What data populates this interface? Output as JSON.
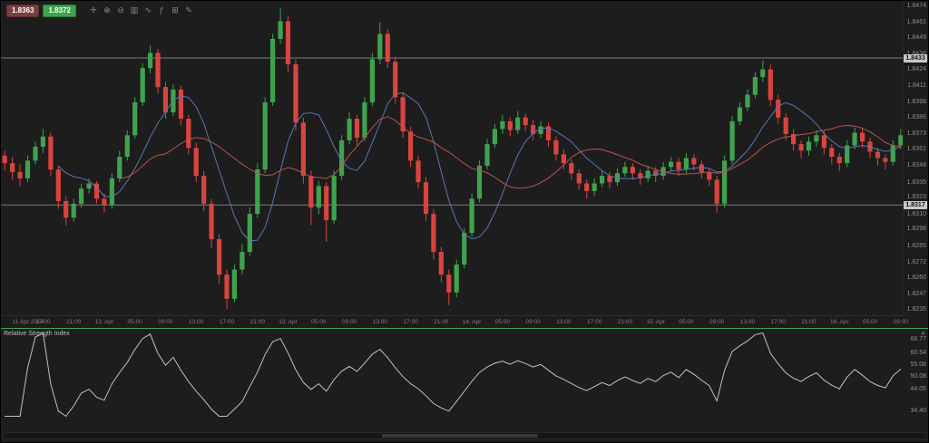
{
  "quote": {
    "bid": "1.8363",
    "ask": "1.8372"
  },
  "toolbar": {
    "icons": [
      {
        "name": "crosshair-icon",
        "glyph": "✛"
      },
      {
        "name": "zoom-in-icon",
        "glyph": "⊕"
      },
      {
        "name": "zoom-out-icon",
        "glyph": "⊖"
      },
      {
        "name": "candlestick-chart-icon",
        "glyph": "▥"
      },
      {
        "name": "line-chart-icon",
        "glyph": "∿"
      },
      {
        "name": "indicators-icon",
        "glyph": "ƒ"
      },
      {
        "name": "grid-icon",
        "glyph": "⊞"
      },
      {
        "name": "draw-icon",
        "glyph": "✎"
      }
    ]
  },
  "price_axis": {
    "labels": [
      "1.8474",
      "1.8461",
      "1.8449",
      "1.8436",
      "1.8424",
      "1.8411",
      "1.8398",
      "1.8386",
      "1.8373",
      "1.8361",
      "1.8348",
      "1.8335",
      "1.8323",
      "1.8310",
      "1.8298",
      "1.8285",
      "1.8272",
      "1.8260",
      "1.8247",
      "1.8235"
    ],
    "line_badges": [
      "1.8433",
      "1.8317"
    ]
  },
  "time_axis": {
    "labels": [
      "11 Apr 2014",
      "17:00",
      "21:00",
      "12. Apr",
      "05:00",
      "09:00",
      "13:00",
      "17:00",
      "21:00",
      "13. Apr",
      "05:00",
      "09:00",
      "13:00",
      "17:00",
      "21:00",
      "14. Apr",
      "05:00",
      "09:00",
      "13:00",
      "17:00",
      "21:00",
      "15. Apr",
      "05:00",
      "09:00",
      "13:00",
      "17:00",
      "21:00",
      "16. Apr",
      "05:00",
      "09:00"
    ]
  },
  "rsi_panel": {
    "title": "Relative Strength Index",
    "close_glyph": "×",
    "axis_labels": [
      "66.77",
      "60.54",
      "55.08",
      "50.08",
      "44.05",
      "34.40"
    ],
    "range": [
      31,
      70
    ],
    "period": 14
  },
  "colors": {
    "up": "#3fa34d",
    "down": "#d9443f",
    "ma_fast": "#5a78b8",
    "ma_slow": "#bb5450",
    "hline": "#9c9c9c",
    "rsi_line": "#c2c2c2",
    "accent": "#3fa34d"
  },
  "chart_data": {
    "type": "candlestick",
    "price_range": [
      1.823,
      1.8478
    ],
    "h_lines": [
      1.8433,
      1.8317
    ],
    "indicators": [
      {
        "name": "sma-fast",
        "period": 8,
        "color": "#5a78b8"
      },
      {
        "name": "sma-slow",
        "period": 16,
        "color": "#bb5450"
      }
    ],
    "candles": [
      [
        1.8356,
        1.836,
        1.8344,
        1.835
      ],
      [
        1.835,
        1.8355,
        1.8337,
        1.8343
      ],
      [
        1.8343,
        1.8349,
        1.8332,
        1.8338
      ],
      [
        1.8338,
        1.8356,
        1.8335,
        1.8352
      ],
      [
        1.8352,
        1.8367,
        1.8349,
        1.8363
      ],
      [
        1.8363,
        1.8377,
        1.8358,
        1.8371
      ],
      [
        1.8371,
        1.8374,
        1.834,
        1.8345
      ],
      [
        1.8345,
        1.8348,
        1.8314,
        1.832
      ],
      [
        1.832,
        1.8324,
        1.8301,
        1.8307
      ],
      [
        1.8307,
        1.8322,
        1.8304,
        1.8318
      ],
      [
        1.8318,
        1.8334,
        1.8315,
        1.833
      ],
      [
        1.833,
        1.8338,
        1.8326,
        1.8334
      ],
      [
        1.8334,
        1.8336,
        1.8318,
        1.8322
      ],
      [
        1.8322,
        1.8326,
        1.8311,
        1.8317
      ],
      [
        1.8317,
        1.8342,
        1.8314,
        1.8338
      ],
      [
        1.8338,
        1.836,
        1.8335,
        1.8355
      ],
      [
        1.8355,
        1.8376,
        1.8352,
        1.8372
      ],
      [
        1.8372,
        1.8402,
        1.8369,
        1.8398
      ],
      [
        1.8398,
        1.8429,
        1.8395,
        1.8425
      ],
      [
        1.8425,
        1.8443,
        1.8421,
        1.8437
      ],
      [
        1.8437,
        1.844,
        1.8405,
        1.841
      ],
      [
        1.841,
        1.8414,
        1.8385,
        1.839
      ],
      [
        1.839,
        1.8412,
        1.8387,
        1.8408
      ],
      [
        1.8408,
        1.8411,
        1.838,
        1.8385
      ],
      [
        1.8385,
        1.8388,
        1.8357,
        1.8362
      ],
      [
        1.8362,
        1.8366,
        1.8335,
        1.834
      ],
      [
        1.834,
        1.8344,
        1.8312,
        1.8318
      ],
      [
        1.8318,
        1.8322,
        1.8283,
        1.829
      ],
      [
        1.829,
        1.8294,
        1.8255,
        1.8262
      ],
      [
        1.8262,
        1.8266,
        1.8235,
        1.8243
      ],
      [
        1.8243,
        1.827,
        1.824,
        1.8266
      ],
      [
        1.8266,
        1.8286,
        1.8262,
        1.828
      ],
      [
        1.828,
        1.8315,
        1.8277,
        1.831
      ],
      [
        1.831,
        1.835,
        1.8307,
        1.8345
      ],
      [
        1.8345,
        1.8402,
        1.8342,
        1.8398
      ],
      [
        1.8398,
        1.8452,
        1.8395,
        1.8448
      ],
      [
        1.8448,
        1.8472,
        1.8444,
        1.8462
      ],
      [
        1.8462,
        1.8466,
        1.8422,
        1.8428
      ],
      [
        1.8428,
        1.8432,
        1.8376,
        1.8382
      ],
      [
        1.8382,
        1.8386,
        1.8334,
        1.834
      ],
      [
        1.834,
        1.8344,
        1.8301,
        1.8315
      ],
      [
        1.8315,
        1.8336,
        1.831,
        1.8332
      ],
      [
        1.8332,
        1.8335,
        1.8288,
        1.8305
      ],
      [
        1.8305,
        1.8344,
        1.8302,
        1.834
      ],
      [
        1.834,
        1.8372,
        1.8337,
        1.8368
      ],
      [
        1.8368,
        1.839,
        1.8365,
        1.8385
      ],
      [
        1.8385,
        1.8388,
        1.8364,
        1.837
      ],
      [
        1.837,
        1.8402,
        1.8367,
        1.8398
      ],
      [
        1.8398,
        1.8437,
        1.8395,
        1.8432
      ],
      [
        1.8432,
        1.8461,
        1.8428,
        1.8452
      ],
      [
        1.8452,
        1.8456,
        1.8425,
        1.843
      ],
      [
        1.843,
        1.8434,
        1.8397,
        1.8402
      ],
      [
        1.8402,
        1.8406,
        1.837,
        1.8375
      ],
      [
        1.8375,
        1.8379,
        1.8347,
        1.8352
      ],
      [
        1.8352,
        1.8356,
        1.833,
        1.8335
      ],
      [
        1.8335,
        1.8339,
        1.8304,
        1.831
      ],
      [
        1.831,
        1.8314,
        1.8274,
        1.828
      ],
      [
        1.828,
        1.8284,
        1.8256,
        1.8262
      ],
      [
        1.8262,
        1.8266,
        1.8238,
        1.8248
      ],
      [
        1.8248,
        1.8274,
        1.8244,
        1.827
      ],
      [
        1.827,
        1.8299,
        1.8267,
        1.8295
      ],
      [
        1.8295,
        1.8326,
        1.8292,
        1.8322
      ],
      [
        1.8322,
        1.8352,
        1.8319,
        1.8348
      ],
      [
        1.8348,
        1.8369,
        1.8345,
        1.8365
      ],
      [
        1.8365,
        1.8381,
        1.8362,
        1.8377
      ],
      [
        1.8377,
        1.8388,
        1.8373,
        1.8383
      ],
      [
        1.8383,
        1.8386,
        1.8371,
        1.8376
      ],
      [
        1.8376,
        1.8391,
        1.8373,
        1.8386
      ],
      [
        1.8386,
        1.8389,
        1.8375,
        1.838
      ],
      [
        1.838,
        1.8384,
        1.8368,
        1.8373
      ],
      [
        1.8373,
        1.8383,
        1.837,
        1.8379
      ],
      [
        1.8379,
        1.8382,
        1.8363,
        1.8368
      ],
      [
        1.8368,
        1.8371,
        1.8352,
        1.8357
      ],
      [
        1.8357,
        1.8361,
        1.8345,
        1.835
      ],
      [
        1.835,
        1.8353,
        1.8337,
        1.8342
      ],
      [
        1.8342,
        1.8345,
        1.8329,
        1.8334
      ],
      [
        1.8334,
        1.8337,
        1.8322,
        1.8328
      ],
      [
        1.8328,
        1.8338,
        1.8324,
        1.8334
      ],
      [
        1.8334,
        1.8344,
        1.8331,
        1.834
      ],
      [
        1.834,
        1.8343,
        1.833,
        1.8335
      ],
      [
        1.8335,
        1.8346,
        1.8332,
        1.8342
      ],
      [
        1.8342,
        1.8351,
        1.8339,
        1.8347
      ],
      [
        1.8347,
        1.835,
        1.8337,
        1.8342
      ],
      [
        1.8342,
        1.8345,
        1.8333,
        1.8338
      ],
      [
        1.8338,
        1.8348,
        1.8335,
        1.8344
      ],
      [
        1.8344,
        1.8347,
        1.8335,
        1.834
      ],
      [
        1.834,
        1.8351,
        1.8337,
        1.8347
      ],
      [
        1.8347,
        1.8355,
        1.8344,
        1.8351
      ],
      [
        1.8351,
        1.8354,
        1.834,
        1.8345
      ],
      [
        1.8345,
        1.8358,
        1.8342,
        1.8354
      ],
      [
        1.8354,
        1.8357,
        1.8344,
        1.8349
      ],
      [
        1.8349,
        1.8352,
        1.8338,
        1.8343
      ],
      [
        1.8343,
        1.8346,
        1.8332,
        1.8337
      ],
      [
        1.8337,
        1.834,
        1.8311,
        1.8318
      ],
      [
        1.8318,
        1.8356,
        1.8315,
        1.8352
      ],
      [
        1.8352,
        1.8387,
        1.8349,
        1.8383
      ],
      [
        1.8383,
        1.8398,
        1.838,
        1.8394
      ],
      [
        1.8394,
        1.8408,
        1.8391,
        1.8404
      ],
      [
        1.8404,
        1.8422,
        1.8401,
        1.8418
      ],
      [
        1.8418,
        1.8431,
        1.8414,
        1.8424
      ],
      [
        1.8424,
        1.8428,
        1.8395,
        1.84
      ],
      [
        1.84,
        1.8404,
        1.8381,
        1.8386
      ],
      [
        1.8386,
        1.8389,
        1.8368,
        1.8373
      ],
      [
        1.8373,
        1.8377,
        1.836,
        1.8365
      ],
      [
        1.8365,
        1.8368,
        1.8354,
        1.836
      ],
      [
        1.836,
        1.8371,
        1.8356,
        1.8367
      ],
      [
        1.8367,
        1.8376,
        1.8363,
        1.8372
      ],
      [
        1.8372,
        1.8375,
        1.8357,
        1.8362
      ],
      [
        1.8362,
        1.8365,
        1.8349,
        1.8355
      ],
      [
        1.8355,
        1.8358,
        1.8344,
        1.835
      ],
      [
        1.835,
        1.8368,
        1.8347,
        1.8364
      ],
      [
        1.8364,
        1.8378,
        1.8361,
        1.8374
      ],
      [
        1.8374,
        1.8377,
        1.8362,
        1.8367
      ],
      [
        1.8367,
        1.837,
        1.8354,
        1.8359
      ],
      [
        1.8359,
        1.8362,
        1.8348,
        1.8354
      ],
      [
        1.8354,
        1.8357,
        1.8345,
        1.8351
      ],
      [
        1.8351,
        1.8368,
        1.8348,
        1.8364
      ],
      [
        1.8364,
        1.8377,
        1.8361,
        1.8372
      ]
    ]
  }
}
